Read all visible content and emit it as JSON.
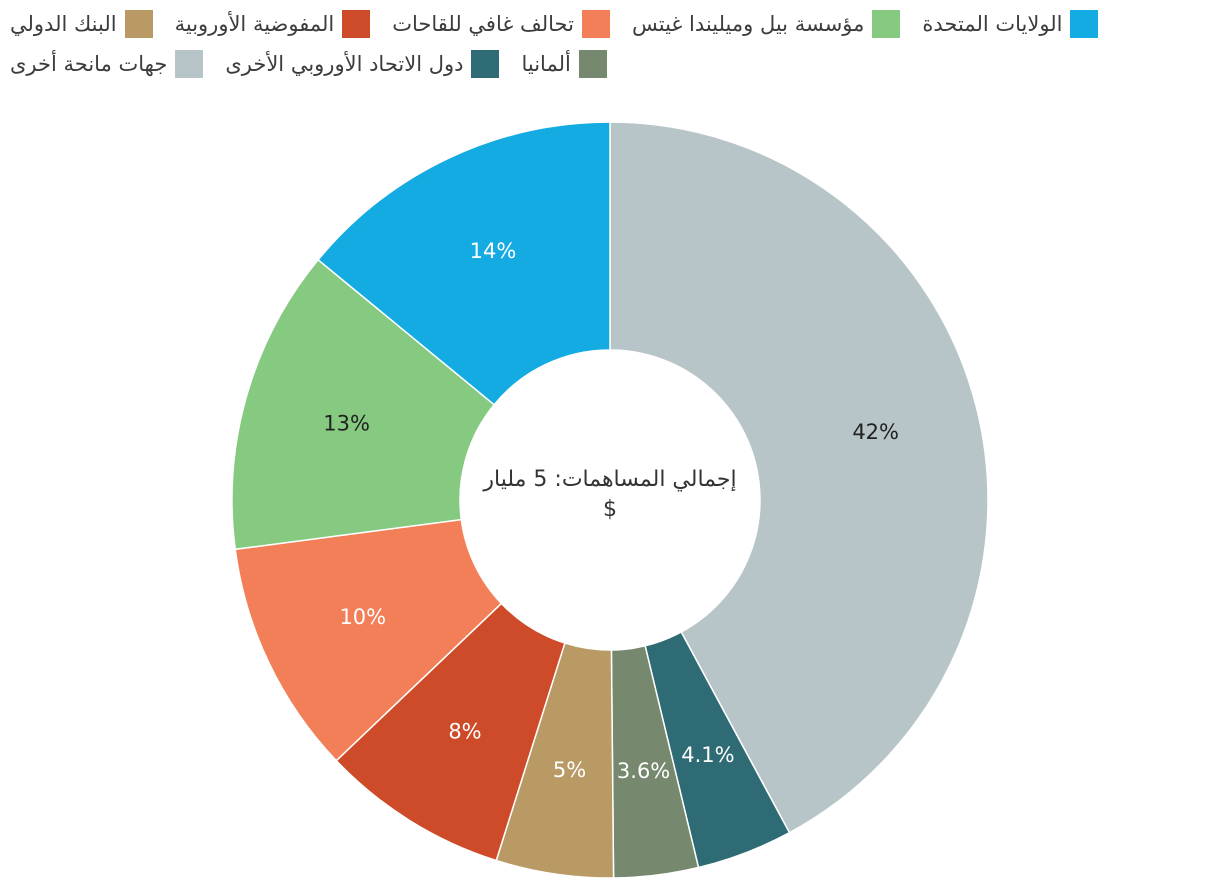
{
  "chart_data": {
    "type": "pie",
    "center_label": "إجمالي المساهمات: 5 مليار $",
    "slices": [
      {
        "name": "جهات مانحة أخرى",
        "value": 42,
        "label": "42%",
        "color": "#b7c5c8",
        "label_color": "#222222"
      },
      {
        "name": "دول الاتحاد الأوروبي الأخرى",
        "value": 4.1,
        "label": "4.1%",
        "color": "#2e6b75",
        "label_color": "#ffffff"
      },
      {
        "name": "ألمانيا",
        "value": 3.6,
        "label": "3.6%",
        "color": "#76886d",
        "label_color": "#ffffff"
      },
      {
        "name": "البنك الدولي",
        "value": 5,
        "label": "5%",
        "color": "#b99a65",
        "label_color": "#ffffff"
      },
      {
        "name": "المفوضية الأوروبية",
        "value": 8,
        "label": "8%",
        "color": "#cd4b28",
        "label_color": "#ffffff"
      },
      {
        "name": "تحالف غافي للقاحات",
        "value": 10,
        "label": "10%",
        "color": "#f37f59",
        "label_color": "#ffffff"
      },
      {
        "name": "مؤسسة بيل وميليندا غيتس",
        "value": 13,
        "label": "13%",
        "color": "#86c981",
        "label_color": "#222222"
      },
      {
        "name": "الولايات المتحدة",
        "value": 14,
        "label": "14%",
        "color": "#14aae2",
        "label_color": "#ffffff"
      }
    ],
    "legend": {
      "placement": "top-right",
      "rows": [
        [
          "الولايات المتحدة",
          "مؤسسة بيل وميليندا غيتس",
          "تحالف غافي للقاحات",
          "المفوضية الأوروبية",
          "البنك الدولي"
        ],
        [
          "ألمانيا",
          "دول الاتحاد الأوروبي الأخرى",
          "جهات مانحة أخرى"
        ]
      ]
    }
  }
}
